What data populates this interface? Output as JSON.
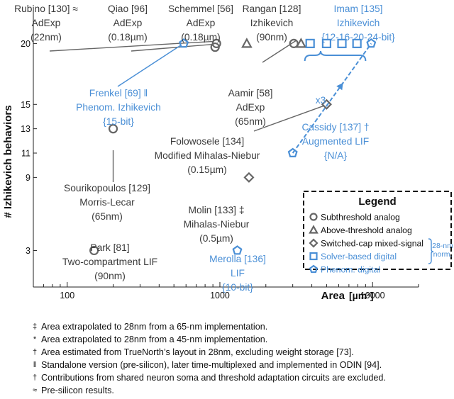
{
  "chart_data": {
    "type": "scatter",
    "xlabel": "Area",
    "xunit": "[µm²]",
    "ylabel": "# Izhikevich behaviors",
    "xscale": "log",
    "xlim": [
      60,
      20000
    ],
    "ylim": [
      0,
      22.7
    ],
    "x_ticks": [
      100,
      1000,
      10000
    ],
    "x_tick_labels": [
      "100",
      "1000",
      "10000"
    ],
    "y_ticks": [
      3,
      9,
      11,
      13,
      15,
      20
    ],
    "y_tick_labels": [
      "3",
      "9",
      "11",
      "13",
      "15",
      "20"
    ],
    "series": [
      {
        "name": "Subthreshold analog",
        "marker": "circle",
        "color": "#666666",
        "points": [
          {
            "label": "Rubino [130]",
            "x": 950,
            "y": 20
          },
          {
            "label": "Qiao [96]",
            "x": 930,
            "y": 19.7
          },
          {
            "label": "Sourikopoulos [129]",
            "x": 200,
            "y": 13
          },
          {
            "label": "Rangan [128]",
            "x": 3050,
            "y": 20
          },
          {
            "label": "Park [81]",
            "x": 150,
            "y": 3
          }
        ]
      },
      {
        "name": "Above-threshold analog",
        "marker": "triangle",
        "color": "#666666",
        "points": [
          {
            "label": "Schemmel [56]",
            "x": 1500,
            "y": 20
          },
          {
            "label": "Aamir [58]",
            "x": 3400,
            "y": 20
          }
        ]
      },
      {
        "name": "Switched-cap mixed-signal",
        "marker": "diamond",
        "color": "#666666",
        "points": [
          {
            "label": "Folowosele [134]",
            "x": 5000,
            "y": 15
          },
          {
            "label": "Molin [133]",
            "x": 1550,
            "y": 9
          }
        ]
      },
      {
        "name": "Solver-based digital",
        "marker": "square",
        "color": "#4a8fd6",
        "points": [
          {
            "label": "Imam [135]",
            "x": 3900,
            "y": 20
          },
          {
            "label": "Imam [135]",
            "x": 5000,
            "y": 20
          },
          {
            "label": "Imam [135]",
            "x": 6300,
            "y": 20
          },
          {
            "label": "Imam [135]",
            "x": 7900,
            "y": 20
          }
        ]
      },
      {
        "name": "Phenom. digital",
        "marker": "pentagon",
        "color": "#4a8fd6",
        "points": [
          {
            "label": "Frenkel [69]",
            "x": 580,
            "y": 20
          },
          {
            "label": "Cassidy [137]",
            "x": 3000,
            "y": 11
          },
          {
            "label": "Cassidy [137]",
            "x": 9800,
            "y": 20
          },
          {
            "label": "Merolla [136]",
            "x": 1300,
            "y": 3
          }
        ]
      }
    ],
    "annotations": [
      {
        "id": "rubino",
        "color": "gray",
        "lines": [
          "Rubino [130] ≈",
          "AdExp",
          "(22nm)"
        ]
      },
      {
        "id": "qiao",
        "color": "gray",
        "lines": [
          "Qiao [96]",
          "AdExp",
          "(0.18µm)"
        ]
      },
      {
        "id": "schemmel",
        "color": "gray",
        "lines": [
          "Schemmel [56]",
          "AdExp",
          "(0.18µm)"
        ]
      },
      {
        "id": "rangan",
        "color": "gray",
        "lines": [
          "Rangan [128]",
          "Izhikevich",
          "(90nm)"
        ]
      },
      {
        "id": "imam",
        "color": "blue",
        "lines": [
          "Imam [135]",
          "Izhikevich",
          "{12-16-20-24-bit}"
        ]
      },
      {
        "id": "frenkel",
        "color": "blue",
        "lines": [
          "Frenkel [69] ǁ",
          "Phenom. Izhikevich",
          "{15-bit}"
        ]
      },
      {
        "id": "aamir",
        "color": "gray",
        "lines": [
          "Aamir [58]",
          "AdExp",
          "(65nm)"
        ]
      },
      {
        "id": "cassidy",
        "color": "blue",
        "lines": [
          "Cassidy [137] †",
          "Augmented LIF",
          "{N/A}"
        ]
      },
      {
        "id": "folowosele",
        "color": "gray",
        "lines": [
          "Folowosele [134]",
          "Modified Mihalas-Niebur",
          "(0.15µm)"
        ]
      },
      {
        "id": "sourikopoulos",
        "color": "gray",
        "lines": [
          "Sourikopoulos [129]",
          "Morris-Lecar",
          "(65nm)"
        ]
      },
      {
        "id": "molin",
        "color": "gray",
        "lines": [
          "Molin [133] ‡",
          "Mihalas-Niebur",
          "(0.5µm)"
        ]
      },
      {
        "id": "park",
        "color": "gray",
        "lines": [
          "Park [81]",
          "Two-compartment LIF",
          "(90nm)"
        ]
      },
      {
        "id": "merolla",
        "color": "blue",
        "lines": [
          "Merolla [136]",
          "LIF",
          "{10-bit}"
        ]
      },
      {
        "id": "x3",
        "color": "blue",
        "lines": [
          "x3"
        ]
      }
    ],
    "legend": {
      "title": "Legend",
      "position": "bottom-right",
      "norm_note": [
        "28-nm",
        "norm."
      ],
      "entries": [
        {
          "marker": "circle",
          "label": "Subthreshold analog",
          "color": "gray"
        },
        {
          "marker": "triangle",
          "label": "Above-threshold analog",
          "color": "gray"
        },
        {
          "marker": "diamond",
          "label": "Switched-cap mixed-signal",
          "color": "gray"
        },
        {
          "marker": "square",
          "label": "Solver-based digital",
          "color": "blue"
        },
        {
          "marker": "pentagon",
          "label": "Phenom. digital",
          "color": "blue"
        }
      ]
    }
  },
  "colors": {
    "gray": "#666666",
    "text": "#3a3a3a",
    "blue": "#4a8fd6"
  },
  "footnotes": [
    {
      "symbol": "‡",
      "text": "Area extrapolated to 28nm from a 65-nm implementation."
    },
    {
      "symbol": "*",
      "text": "Area extrapolated to 28nm from a 45-nm implementation."
    },
    {
      "symbol": "†",
      "text": "Area estimated from TrueNorth’s layout in 28nm, excluding weight storage [73]."
    },
    {
      "symbol": "ǁ",
      "text": "Standalone version (pre-silicon), later time-multiplexed and implemented in ODIN [94]."
    },
    {
      "symbol": "†",
      "text": "Contributions from shared neuron soma and threshold adaptation circuits are excluded."
    },
    {
      "symbol": "≈",
      "text": "Pre-silicon results."
    }
  ]
}
